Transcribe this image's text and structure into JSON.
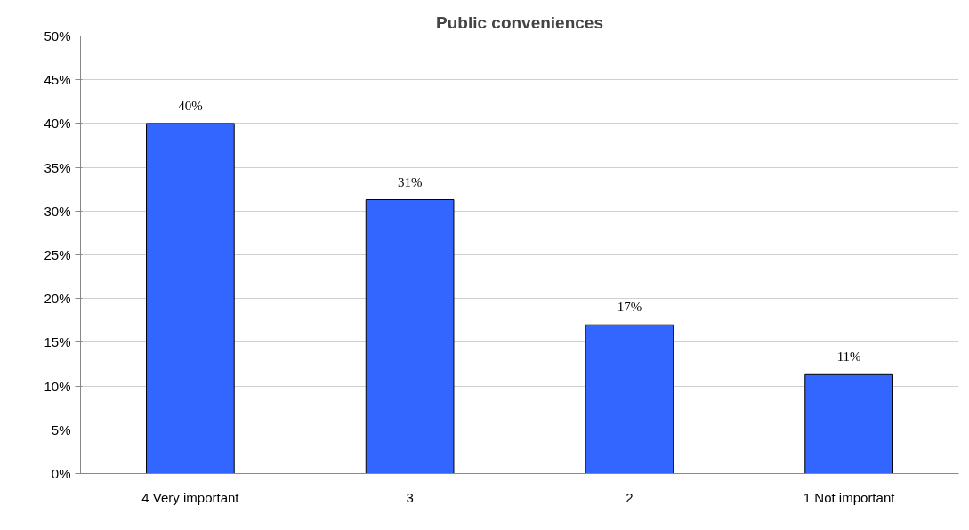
{
  "chart_data": {
    "type": "bar",
    "title": "Public conveniences",
    "categories": [
      "4 Very important",
      "3",
      "2",
      "1 Not important"
    ],
    "values": [
      40,
      31.3,
      17,
      11.3
    ],
    "value_labels": [
      "40%",
      "31%",
      "17%",
      "11%"
    ],
    "color": "#3366ff",
    "ylim": [
      0,
      50
    ],
    "yticks": [
      {
        "value": 0,
        "label": "0%"
      },
      {
        "value": 5,
        "label": "5%"
      },
      {
        "value": 10,
        "label": "10%"
      },
      {
        "value": 15,
        "label": "15%"
      },
      {
        "value": 20,
        "label": "20%"
      },
      {
        "value": 25,
        "label": "25%"
      },
      {
        "value": 30,
        "label": "30%"
      },
      {
        "value": 35,
        "label": "35%"
      },
      {
        "value": 40,
        "label": "40%"
      },
      {
        "value": 45,
        "label": "45%"
      },
      {
        "value": 50,
        "label": "50%"
      }
    ],
    "grid": "y"
  }
}
